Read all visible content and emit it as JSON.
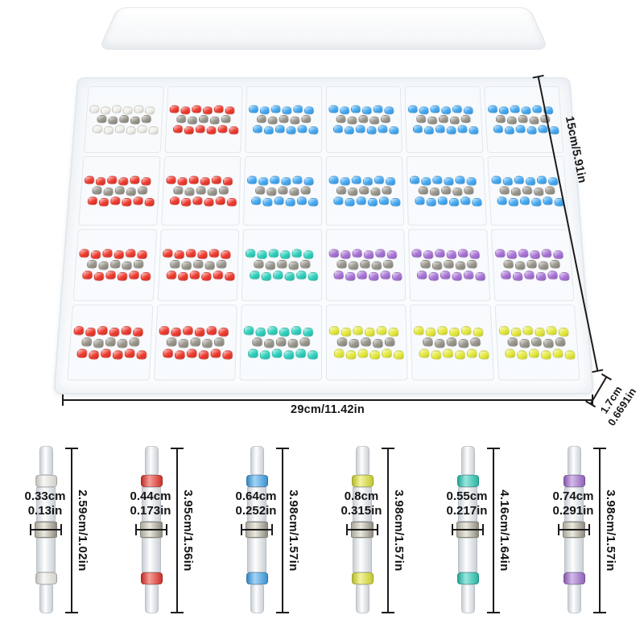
{
  "box": {
    "height_label": "15cm/5.91in",
    "width_label": "29cm/11.42in",
    "depth_label_cm": "1.7cm",
    "depth_label_in": "0.6691in",
    "grid": {
      "rows": 4,
      "cols": 6,
      "cells": [
        [
          "white",
          "red",
          "blue",
          "blue",
          "blue",
          "blue"
        ],
        [
          "red",
          "red",
          "blue",
          "blue",
          "blue",
          "blue"
        ],
        [
          "red",
          "red",
          "teal",
          "purple",
          "purple",
          "purple"
        ],
        [
          "red",
          "red",
          "teal",
          "yellow",
          "yellow",
          "yellow"
        ]
      ]
    }
  },
  "connectors": [
    {
      "name": "white",
      "diameter_cm": "0.33cm",
      "diameter_in": "0.13in",
      "length_label": "2.59cm/1.02in"
    },
    {
      "name": "red",
      "diameter_cm": "0.44cm",
      "diameter_in": "0.173in",
      "length_label": "3.95cm/1.56in"
    },
    {
      "name": "blue",
      "diameter_cm": "0.64cm",
      "diameter_in": "0.252in",
      "length_label": "3.98cm/1.57in"
    },
    {
      "name": "yellow",
      "diameter_cm": "0.8cm",
      "diameter_in": "0.315in",
      "length_label": "3.98cm/1.57in"
    },
    {
      "name": "teal",
      "diameter_cm": "0.55cm",
      "diameter_in": "0.217in",
      "length_label": "4.16cm/1.64in"
    },
    {
      "name": "purple",
      "diameter_cm": "0.74cm",
      "diameter_in": "0.291in",
      "length_label": "3.98cm/1.57in"
    }
  ],
  "colors": {
    "red": "#ee3b2f",
    "blue": "#45a9f2",
    "teal": "#2fd0bd",
    "purple": "#a873d6",
    "yellow": "#e4e93c",
    "white": "#f1f0ea",
    "solder": "#99968c",
    "dimension": "#1b1b1b"
  }
}
